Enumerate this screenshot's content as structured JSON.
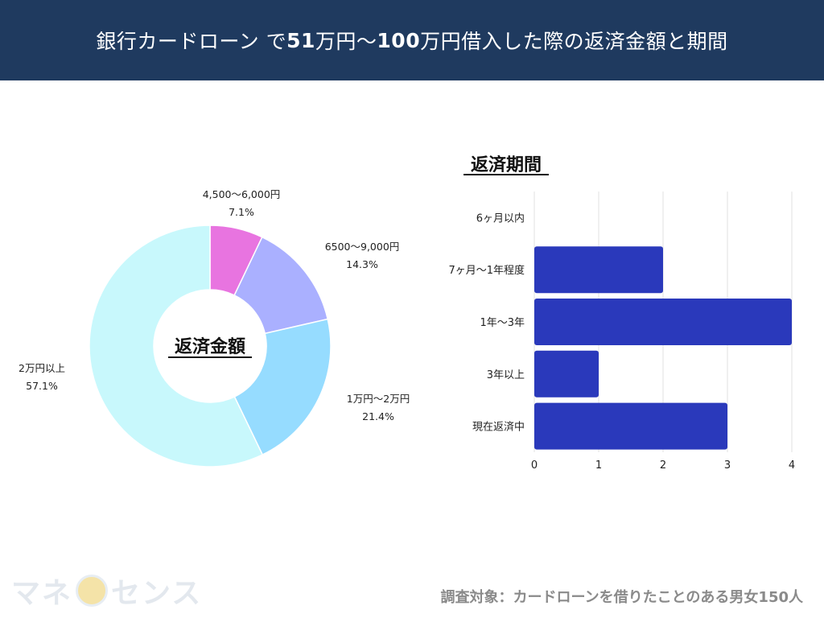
{
  "header": {
    "title_parts": [
      "銀行カードローン で",
      "51",
      "万円〜",
      "100",
      "万円借入した際の返済金額と期間"
    ]
  },
  "footer": {
    "note": "調査対象：カードローンを借りたことのある男女150人",
    "logo_text_a": "マネ",
    "logo_text_b": "センス"
  },
  "chart_data": [
    {
      "type": "pie",
      "title": "返済金額",
      "slices": [
        {
          "label": "4,500〜6,000円",
          "value": 7.1,
          "value_label": "7.1%",
          "color": "#e874e0"
        },
        {
          "label": "6500〜9,000円",
          "value": 14.3,
          "value_label": "14.3%",
          "color": "#aab0ff"
        },
        {
          "label": "1万円〜2万円",
          "value": 21.4,
          "value_label": "21.4%",
          "color": "#96dcff"
        },
        {
          "label": "2万円以上",
          "value": 57.1,
          "value_label": "57.1%",
          "color": "#c8f8fc"
        }
      ]
    },
    {
      "type": "bar",
      "orientation": "horizontal",
      "title": "返済期間",
      "categories": [
        "6ヶ月以内",
        "7ヶ月〜1年程度",
        "1年〜3年",
        "3年以上",
        "現在返済中"
      ],
      "values": [
        0,
        2,
        4,
        1,
        3
      ],
      "xlim": [
        0,
        4
      ],
      "xticks": [
        "0",
        "1",
        "2",
        "3",
        "4"
      ],
      "bar_color": "#2a39bb",
      "grid": true
    }
  ]
}
